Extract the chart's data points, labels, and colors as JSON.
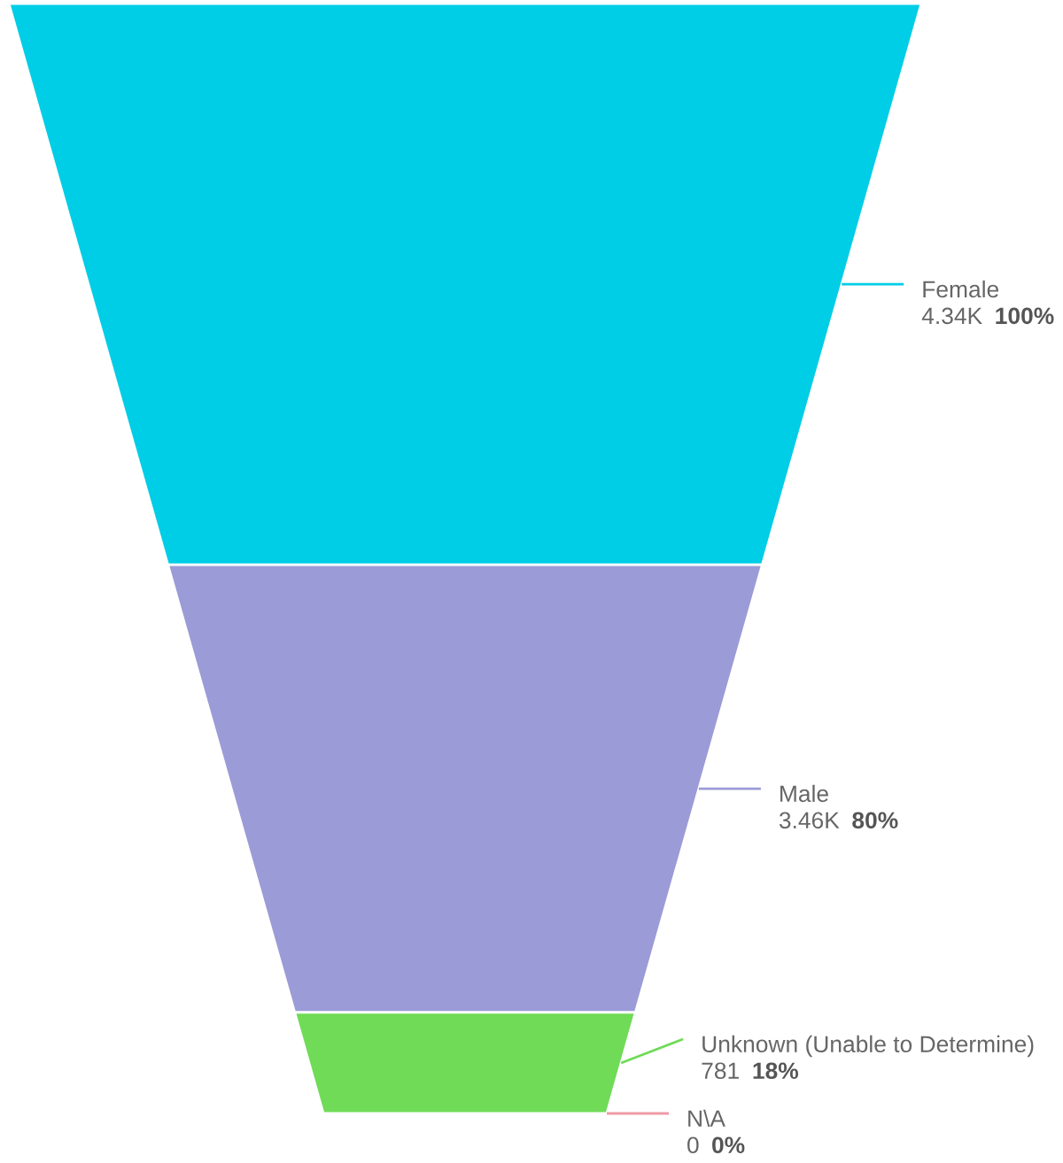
{
  "chart_data": {
    "type": "other",
    "categories": [
      "Female",
      "Male",
      "Unknown (Unable to Determine)",
      "N\\A"
    ],
    "values": [
      4340,
      3460,
      781,
      0
    ],
    "value_labels": [
      "4.34K 100%",
      "3.46K 80%",
      "781 18%",
      "0 0%"
    ],
    "colors": [
      "#00cde6",
      "#9b9bd7",
      "#6fdb57",
      "#ee9aa6"
    ]
  }
}
